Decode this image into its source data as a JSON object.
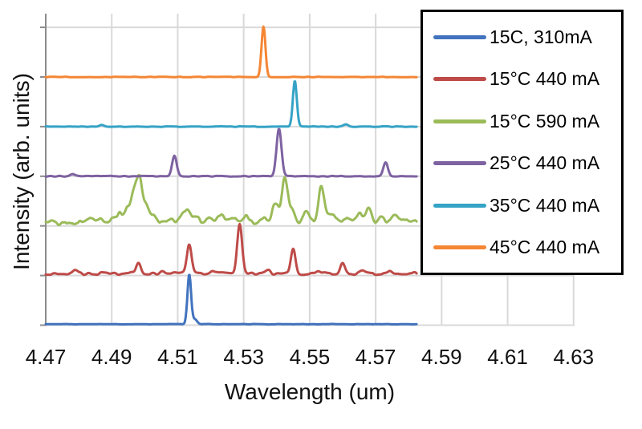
{
  "figure": {
    "background": "#ffffff"
  },
  "chart_data": {
    "type": "line",
    "title": "",
    "xlabel": "Wavelength (um)",
    "ylabel": "Intensity (arb. units)",
    "xlim": [
      4.47,
      4.6303
    ],
    "x_ticks": [
      4.47,
      4.49,
      4.51,
      4.53,
      4.55,
      4.57,
      4.59,
      4.61,
      4.63
    ],
    "x_tick_labels": [
      "4.47",
      "4.49",
      "4.51",
      "4.53",
      "4.55",
      "4.57",
      "4.59",
      "4.61",
      "4.63"
    ],
    "x_data_range": [
      4.47,
      4.5825
    ],
    "y_axis": {
      "gridline_units": [
        0,
        1,
        2,
        3,
        4,
        5,
        6
      ],
      "max_units": 6.28,
      "units": "arb. units (stacked offsets)"
    },
    "grid": true,
    "legend_position": "top-right-overlay",
    "colors": {
      "grid": "#d9d9d9",
      "axis": "#8c8c8c",
      "text": "#111111",
      "legend_border": "#000000"
    },
    "series": [
      {
        "name": "15C, 310mA",
        "color": "#4273BE",
        "baseline": 0.02,
        "noise": {
          "amp": 0.005,
          "seed": 11,
          "step": 0.0015
        },
        "peaks": [
          [
            4.5135,
            1.0,
            0.00055
          ],
          [
            4.5152,
            0.1,
            0.0007
          ]
        ]
      },
      {
        "name": "15°C 440 mA",
        "color": "#BE4B48",
        "baseline": 1.04,
        "noise": {
          "amp": 0.028,
          "seed": 23,
          "step": 0.0013
        },
        "peaks": [
          [
            4.4788,
            0.05,
            0.0008
          ],
          [
            4.498,
            0.21,
            0.0007
          ],
          [
            4.5055,
            0.04,
            0.0007
          ],
          [
            4.5135,
            0.57,
            0.0007
          ],
          [
            4.5205,
            0.05,
            0.0007
          ],
          [
            4.5288,
            0.98,
            0.00075
          ],
          [
            4.5375,
            0.06,
            0.0007
          ],
          [
            4.545,
            0.51,
            0.0007
          ],
          [
            4.5523,
            0.06,
            0.0007
          ],
          [
            4.56,
            0.2,
            0.0007
          ],
          [
            4.566,
            0.05,
            0.0007
          ],
          [
            4.5745,
            0.05,
            0.0007
          ]
        ]
      },
      {
        "name": "15°C 590 mA",
        "color": "#9BBB59",
        "baseline": 2.06,
        "noise": {
          "amp": 0.045,
          "seed": 37,
          "step": 0.002,
          "amp2": 0.028,
          "seed2": 41,
          "step2": 0.0008
        },
        "peaks": [
          [
            4.4825,
            0.1,
            0.001
          ],
          [
            4.4865,
            0.08,
            0.001
          ],
          [
            4.4905,
            0.1,
            0.0009
          ],
          [
            4.4925,
            0.16,
            0.0008
          ],
          [
            4.4945,
            0.3,
            0.0008
          ],
          [
            4.4965,
            0.5,
            0.0008
          ],
          [
            4.4983,
            0.88,
            0.0009
          ],
          [
            4.5005,
            0.3,
            0.0009
          ],
          [
            4.503,
            0.12,
            0.001
          ],
          [
            4.508,
            0.08,
            0.001
          ],
          [
            4.511,
            0.16,
            0.0009
          ],
          [
            4.513,
            0.28,
            0.0009
          ],
          [
            4.5155,
            0.12,
            0.0009
          ],
          [
            4.519,
            0.08,
            0.001
          ],
          [
            4.523,
            0.17,
            0.001
          ],
          [
            4.5265,
            0.11,
            0.001
          ],
          [
            4.531,
            0.11,
            0.001
          ],
          [
            4.536,
            0.1,
            0.001
          ],
          [
            4.5395,
            0.38,
            0.0009
          ],
          [
            4.5425,
            0.9,
            0.0009
          ],
          [
            4.5448,
            0.28,
            0.0008
          ],
          [
            4.549,
            0.24,
            0.0009
          ],
          [
            4.5535,
            0.7,
            0.0009
          ],
          [
            4.5562,
            0.18,
            0.0009
          ],
          [
            4.558,
            0.12,
            0.0009
          ],
          [
            4.562,
            0.14,
            0.0009
          ],
          [
            4.565,
            0.16,
            0.0009
          ],
          [
            4.568,
            0.26,
            0.0009
          ],
          [
            4.5715,
            0.14,
            0.001
          ],
          [
            4.5755,
            0.12,
            0.001
          ],
          [
            4.5785,
            0.09,
            0.001
          ]
        ]
      },
      {
        "name": "25°C 440 mA",
        "color": "#7E62A1",
        "baseline": 3.0,
        "noise": {
          "amp": 0.008,
          "seed": 53,
          "step": 0.0014
        },
        "peaks": [
          [
            4.4782,
            0.05,
            0.0007
          ],
          [
            4.509,
            0.42,
            0.0007
          ],
          [
            4.5407,
            0.95,
            0.00075
          ],
          [
            4.573,
            0.28,
            0.0007
          ]
        ]
      },
      {
        "name": "35°C 440 mA",
        "color": "#35A3C6",
        "baseline": 4.0,
        "noise": {
          "amp": 0.006,
          "seed": 67,
          "step": 0.0014
        },
        "peaks": [
          [
            4.487,
            0.03,
            0.0007
          ],
          [
            4.5455,
            0.92,
            0.0006
          ],
          [
            4.561,
            0.05,
            0.0007
          ]
        ]
      },
      {
        "name": "45°C 440 mA",
        "color": "#F58634",
        "baseline": 5.0,
        "noise": {
          "amp": 0.005,
          "seed": 79,
          "step": 0.0015
        },
        "peaks": [
          [
            4.536,
            1.01,
            0.0006
          ]
        ]
      }
    ]
  }
}
